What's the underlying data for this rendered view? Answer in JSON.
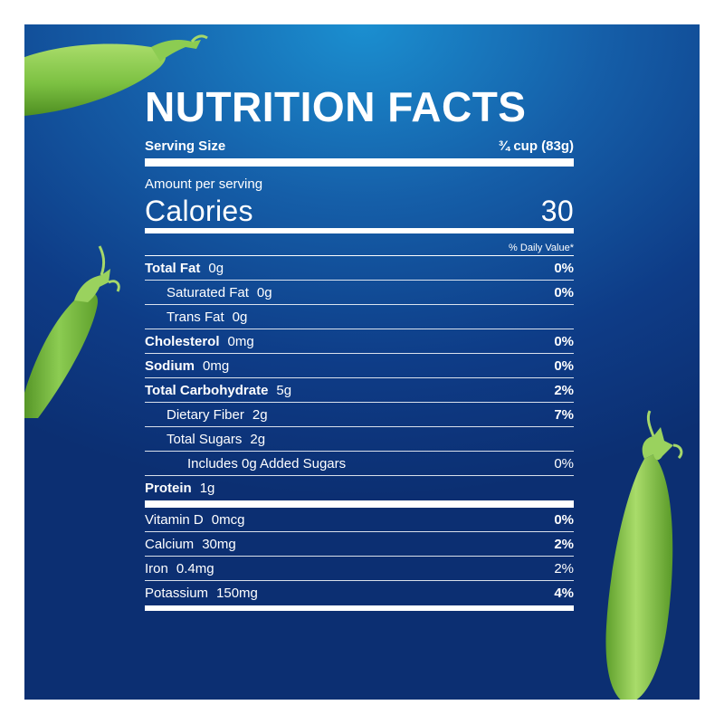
{
  "label": {
    "title": "NUTRITION FACTS",
    "serving_size_label": "Serving Size",
    "serving_size_value": "¾ cup (83g)",
    "amount_per_serving": "Amount per serving",
    "calories_label": "Calories",
    "calories_value": "30",
    "daily_value_header": "% Daily Value*",
    "rows": [
      {
        "label": "Total Fat",
        "amount": "0g",
        "dv": "0%"
      },
      {
        "label": "Saturated Fat",
        "amount": "0g",
        "dv": "0%"
      },
      {
        "label": "Trans Fat",
        "amount": "0g",
        "dv": ""
      },
      {
        "label": "Cholesterol",
        "amount": "0mg",
        "dv": "0%"
      },
      {
        "label": "Sodium",
        "amount": "0mg",
        "dv": "0%"
      },
      {
        "label": "Total Carbohydrate",
        "amount": "5g",
        "dv": "2%"
      },
      {
        "label": "Dietary Fiber",
        "amount": "2g",
        "dv": "7%"
      },
      {
        "label": "Total Sugars",
        "amount": "2g",
        "dv": ""
      },
      {
        "label": "Includes 0g Added Sugars",
        "amount": "",
        "dv": "0%"
      },
      {
        "label": "Protein",
        "amount": "1g",
        "dv": ""
      },
      {
        "label": "Vitamin D",
        "amount": "0mcg",
        "dv": "0%"
      },
      {
        "label": "Calcium",
        "amount": "30mg",
        "dv": "2%"
      },
      {
        "label": "Iron",
        "amount": "0.4mg",
        "dv": "2%"
      },
      {
        "label": "Potassium",
        "amount": "150mg",
        "dv": "4%"
      }
    ]
  },
  "colors": {
    "background_top": "#1b8fd0",
    "background_bottom": "#0c2f72",
    "text": "#ffffff",
    "pea_pod": "#7cc142"
  },
  "decorations": [
    "pea-pod-top-left",
    "pea-pod-left",
    "pea-pod-right"
  ]
}
